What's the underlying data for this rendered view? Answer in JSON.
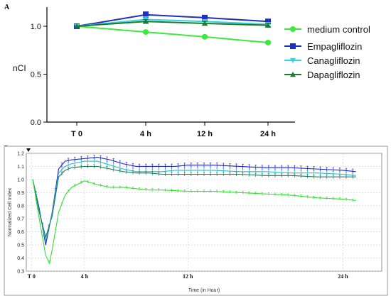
{
  "chart_data": [
    {
      "panel": "A",
      "type": "line",
      "ylabel": "nCI",
      "categories": [
        "T 0",
        "4 h",
        "12 h",
        "24 h"
      ],
      "ylim": [
        0,
        1.2
      ],
      "yticks": [
        "0.0",
        "0.5",
        "1.0"
      ],
      "legend_position": "right",
      "series": [
        {
          "name": "medium control",
          "color": "#3ee83e",
          "marker": "circle",
          "values": [
            1.0,
            0.94,
            0.89,
            0.83
          ],
          "errors": [
            0,
            0.01,
            0.01,
            0.01
          ]
        },
        {
          "name": "Empagliflozin",
          "color": "#1f2fbf",
          "marker": "square",
          "values": [
            1.0,
            1.12,
            1.09,
            1.05
          ],
          "errors": [
            0,
            0.03,
            0.02,
            0.02
          ]
        },
        {
          "name": "Canagliflozin",
          "color": "#33d4e0",
          "marker": "triangle-down",
          "values": [
            1.0,
            1.07,
            1.05,
            1.02
          ],
          "errors": [
            0,
            0.03,
            0.02,
            0.02
          ]
        },
        {
          "name": "Dapagliflozin",
          "color": "#1c7a2e",
          "marker": "triangle-up",
          "values": [
            1.0,
            1.05,
            1.03,
            1.01
          ],
          "errors": [
            0,
            0.02,
            0.02,
            0.02
          ]
        }
      ]
    },
    {
      "panel": "B",
      "type": "line",
      "xlabel": "Time (in Hour)",
      "ylabel": "Normalized Cell Index",
      "xlim": [
        -0.5,
        27
      ],
      "ylim": [
        0.3,
        1.2
      ],
      "yticks": [
        "0.3",
        "0.4",
        "0.5",
        "0.6",
        "0.7",
        "0.8",
        "0.9",
        "1.0",
        "1.1",
        "1.2"
      ],
      "xticks": [
        {
          "label": "T 0",
          "x": -0.1
        },
        {
          "label": "4 h",
          "x": 4
        },
        {
          "label": "12 h",
          "x": 12
        },
        {
          "label": "24 h",
          "x": 24
        }
      ],
      "grid": true,
      "series": [
        {
          "color": "#2222cc",
          "err": 0.018,
          "points": [
            [
              0,
              1.0
            ],
            [
              0.5,
              0.78
            ],
            [
              1.0,
              0.5
            ],
            [
              1.5,
              0.75
            ],
            [
              2.0,
              1.08
            ],
            [
              2.5,
              1.14
            ],
            [
              3,
              1.15
            ],
            [
              4,
              1.16
            ],
            [
              5,
              1.17
            ],
            [
              6,
              1.15
            ],
            [
              7,
              1.12
            ],
            [
              8,
              1.1
            ],
            [
              9,
              1.1
            ],
            [
              10,
              1.1
            ],
            [
              11,
              1.1
            ],
            [
              12,
              1.11
            ],
            [
              14,
              1.11
            ],
            [
              16,
              1.1
            ],
            [
              18,
              1.09
            ],
            [
              20,
              1.09
            ],
            [
              22,
              1.08
            ],
            [
              24,
              1.07
            ],
            [
              25,
              1.06
            ]
          ]
        },
        {
          "color": "#26b7d6",
          "err": 0.018,
          "points": [
            [
              0,
              1.0
            ],
            [
              0.5,
              0.76
            ],
            [
              1.0,
              0.53
            ],
            [
              1.5,
              0.74
            ],
            [
              2.0,
              1.05
            ],
            [
              2.5,
              1.1
            ],
            [
              3,
              1.12
            ],
            [
              4,
              1.14
            ],
            [
              5,
              1.14
            ],
            [
              6,
              1.11
            ],
            [
              7,
              1.08
            ],
            [
              8,
              1.06
            ],
            [
              9,
              1.06
            ],
            [
              10,
              1.06
            ],
            [
              11,
              1.07
            ],
            [
              12,
              1.07
            ],
            [
              14,
              1.07
            ],
            [
              16,
              1.06
            ],
            [
              18,
              1.06
            ],
            [
              20,
              1.05
            ],
            [
              22,
              1.05
            ],
            [
              24,
              1.04
            ],
            [
              25,
              1.03
            ]
          ]
        },
        {
          "color": "#1e7a5a",
          "err": 0.014,
          "points": [
            [
              0,
              1.0
            ],
            [
              0.5,
              0.75
            ],
            [
              1.0,
              0.56
            ],
            [
              1.5,
              0.72
            ],
            [
              2.0,
              1.02
            ],
            [
              2.5,
              1.07
            ],
            [
              3,
              1.09
            ],
            [
              4,
              1.1
            ],
            [
              5,
              1.1
            ],
            [
              6,
              1.08
            ],
            [
              7,
              1.06
            ],
            [
              8,
              1.05
            ],
            [
              9,
              1.05
            ],
            [
              10,
              1.04
            ],
            [
              11,
              1.04
            ],
            [
              12,
              1.04
            ],
            [
              14,
              1.04
            ],
            [
              16,
              1.04
            ],
            [
              18,
              1.03
            ],
            [
              20,
              1.03
            ],
            [
              22,
              1.02
            ],
            [
              24,
              1.02
            ],
            [
              25,
              1.02
            ]
          ]
        },
        {
          "color": "#33dd33",
          "err": 0.01,
          "points": [
            [
              0,
              1.0
            ],
            [
              0.5,
              0.7
            ],
            [
              1.0,
              0.42
            ],
            [
              1.3,
              0.36
            ],
            [
              1.6,
              0.52
            ],
            [
              2.0,
              0.75
            ],
            [
              2.5,
              0.88
            ],
            [
              3,
              0.94
            ],
            [
              4,
              0.99
            ],
            [
              5,
              0.96
            ],
            [
              6,
              0.94
            ],
            [
              7,
              0.94
            ],
            [
              8,
              0.93
            ],
            [
              9,
              0.92
            ],
            [
              10,
              0.92
            ],
            [
              12,
              0.91
            ],
            [
              14,
              0.91
            ],
            [
              16,
              0.9
            ],
            [
              18,
              0.89
            ],
            [
              20,
              0.88
            ],
            [
              22,
              0.86
            ],
            [
              24,
              0.85
            ],
            [
              25,
              0.84
            ]
          ]
        }
      ]
    }
  ]
}
